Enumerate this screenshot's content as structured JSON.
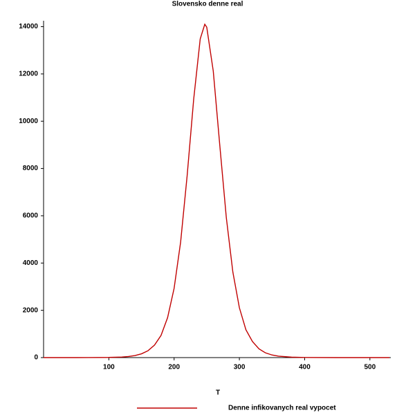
{
  "chart_data": {
    "type": "line",
    "title": "Slovensko denne real",
    "x_label": "T",
    "x": [
      0,
      50,
      100,
      120,
      130,
      140,
      150,
      160,
      170,
      180,
      190,
      200,
      210,
      220,
      230,
      240,
      247,
      250,
      260,
      270,
      280,
      290,
      300,
      310,
      320,
      330,
      340,
      350,
      360,
      380,
      400,
      450,
      530
    ],
    "series": [
      {
        "name": "Denne infikovanych real vypocet",
        "color": "#c00000",
        "values": [
          0,
          0,
          7,
          25,
          47,
          86,
          160,
          290,
          530,
          940,
          1690,
          2930,
          4890,
          7700,
          10930,
          13480,
          14100,
          13980,
          12120,
          8980,
          5920,
          3620,
          2110,
          1180,
          680,
          370,
          200,
          110,
          60,
          18,
          5,
          0,
          0
        ]
      }
    ],
    "xlim": [
      0,
      532
    ],
    "ylim": [
      0,
      14250
    ],
    "xticks": [
      100,
      200,
      300,
      400,
      500
    ],
    "yticks": [
      0,
      2000,
      4000,
      6000,
      8000,
      10000,
      12000,
      14000
    ],
    "grid": false,
    "legend": "bottom"
  }
}
